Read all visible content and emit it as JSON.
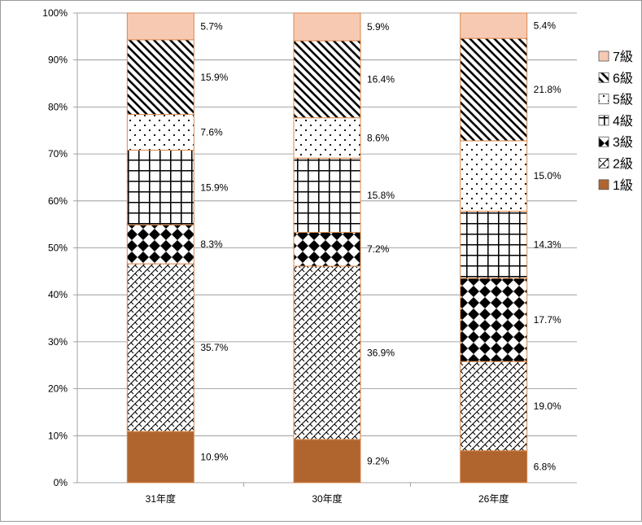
{
  "chart_data": {
    "type": "bar",
    "stacked": true,
    "normalized": true,
    "categories": [
      "31年度",
      "30年度",
      "26年度"
    ],
    "series": [
      {
        "name": "1級",
        "values": [
          10.9,
          9.2,
          6.8
        ],
        "color": "#b0652f",
        "pattern": "solid"
      },
      {
        "name": "2級",
        "values": [
          35.7,
          36.9,
          19.0
        ],
        "color": "#000000",
        "pattern": "diagonal-weave"
      },
      {
        "name": "3級",
        "values": [
          8.3,
          7.2,
          17.7
        ],
        "color": "#000000",
        "pattern": "diamonds"
      },
      {
        "name": "4級",
        "values": [
          15.9,
          15.8,
          14.3
        ],
        "color": "#000000",
        "pattern": "grid"
      },
      {
        "name": "5級",
        "values": [
          7.6,
          8.6,
          15.0
        ],
        "color": "#000000",
        "pattern": "dots"
      },
      {
        "name": "6級",
        "values": [
          15.9,
          16.4,
          21.8
        ],
        "color": "#000000",
        "pattern": "diagonal-stripes"
      },
      {
        "name": "7級",
        "values": [
          5.7,
          5.9,
          5.4
        ],
        "color": "#f7c9b2",
        "pattern": "solid"
      }
    ],
    "value_labels": [
      [
        "10.9%",
        "9.2%",
        "6.8%"
      ],
      [
        "35.7%",
        "36.9%",
        "19.0%"
      ],
      [
        "8.3%",
        "7.2%",
        "17.7%"
      ],
      [
        "15.9%",
        "15.8%",
        "14.3%"
      ],
      [
        "7.6%",
        "8.6%",
        "15.0%"
      ],
      [
        "15.9%",
        "16.4%",
        "21.8%"
      ],
      [
        "5.7%",
        "5.9%",
        "5.4%"
      ]
    ],
    "ylim": [
      0,
      100
    ],
    "yticks": [
      "0%",
      "10%",
      "20%",
      "30%",
      "40%",
      "50%",
      "60%",
      "70%",
      "80%",
      "90%",
      "100%"
    ],
    "grid": true,
    "legend": "right",
    "bar_outline_color": "#d9894e",
    "title": "",
    "xlabel": "",
    "ylabel": ""
  }
}
